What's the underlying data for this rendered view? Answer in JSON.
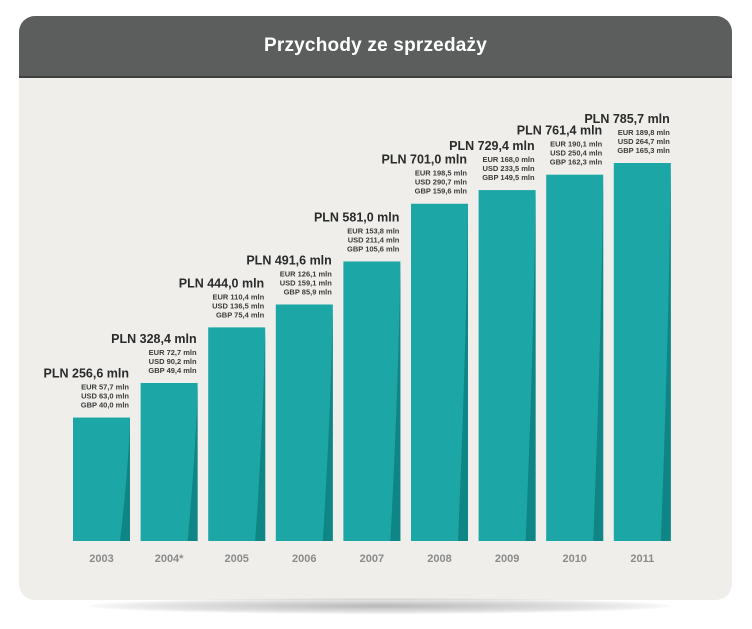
{
  "colors": {
    "bar": "#1ca6a5",
    "bar_shadow": "#0e7f7f",
    "header": "#5c5e5e",
    "panel": "#efeeea"
  },
  "chart_data": {
    "type": "bar",
    "title": "Przychody ze sprzedaży",
    "categories": [
      "2003",
      "2004*",
      "2005",
      "2006",
      "2007",
      "2008",
      "2009",
      "2010",
      "2011"
    ],
    "series": [
      {
        "name": "PLN",
        "unit": "mln",
        "values": [
          256.6,
          328.4,
          444.0,
          491.6,
          581.0,
          701.0,
          729.4,
          761.4,
          785.7
        ]
      },
      {
        "name": "EUR",
        "unit": "mln",
        "values": [
          57.7,
          72.7,
          110.4,
          126.1,
          153.8,
          198.5,
          168.0,
          190.1,
          189.8
        ]
      },
      {
        "name": "USD",
        "unit": "mln",
        "values": [
          63.0,
          90.2,
          136.5,
          159.1,
          211.4,
          290.7,
          233.5,
          250.4,
          264.7
        ]
      },
      {
        "name": "GBP",
        "unit": "mln",
        "values": [
          40.0,
          49.4,
          75.4,
          85.9,
          105.6,
          159.6,
          149.5,
          162.3,
          165.3
        ]
      }
    ],
    "bar_labels": [
      {
        "main": "PLN 256,6 mln",
        "eur": "EUR 57,7 mln",
        "usd": "USD 63,0 mln",
        "gbp": "GBP 40,0 mln"
      },
      {
        "main": "PLN 328,4 mln",
        "eur": "EUR 72,7 mln",
        "usd": "USD 90,2 mln",
        "gbp": "GBP 49,4 mln"
      },
      {
        "main": "PLN 444,0 mln",
        "eur": "EUR 110,4 mln",
        "usd": "USD 136,5 mln",
        "gbp": "GBP 75,4 mln"
      },
      {
        "main": "PLN 491,6 mln",
        "eur": "EUR 126,1 mln",
        "usd": "USD 159,1 mln",
        "gbp": "GBP 85,9 mln"
      },
      {
        "main": "PLN 581,0 mln",
        "eur": "EUR 153,8 mln",
        "usd": "USD 211,4 mln",
        "gbp": "GBP 105,6 mln"
      },
      {
        "main": "PLN 701,0 mln",
        "eur": "EUR 198,5 mln",
        "usd": "USD 290,7 mln",
        "gbp": "GBP 159,6 mln"
      },
      {
        "main": "PLN 729,4 mln",
        "eur": "EUR 168,0 mln",
        "usd": "USD 233,5 mln",
        "gbp": "GBP 149,5 mln"
      },
      {
        "main": "PLN 761,4 mln",
        "eur": "EUR 190,1 mln",
        "usd": "USD 250,4 mln",
        "gbp": "GBP 162,3 mln"
      },
      {
        "main": "PLN 785,7 mln",
        "eur": "EUR 189,8 mln",
        "usd": "USD 264,7 mln",
        "gbp": "GBP 165,3 mln"
      }
    ],
    "ylim": [
      0,
      785.7
    ],
    "grid": false,
    "legend": "none"
  }
}
